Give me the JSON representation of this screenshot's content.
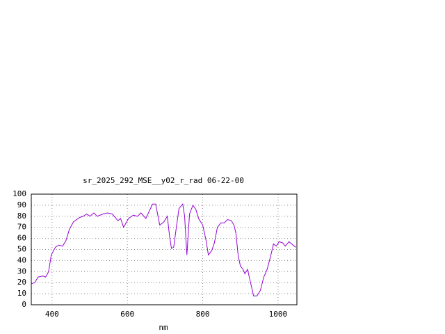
{
  "chart_data": {
    "type": "line",
    "title": "sr_2025_292_MSE__y02_r_rad 06-22-00",
    "x_label": "nm",
    "xlim": [
      345,
      1050
    ],
    "xticks": [
      400,
      600,
      800,
      1000
    ],
    "ylim": [
      0,
      100
    ],
    "yticks": [
      0,
      10,
      20,
      30,
      40,
      50,
      60,
      70,
      80,
      90,
      100
    ],
    "grid": true,
    "series": [
      {
        "color": "#9400d3",
        "x": [
          345,
          354,
          363,
          376,
          383,
          391,
          398,
          409,
          418,
          428,
          437,
          446,
          457,
          474,
          483,
          492,
          501,
          511,
          520,
          535,
          547,
          560,
          575,
          582,
          590,
          603,
          616,
          627,
          636,
          649,
          660,
          667,
          675,
          686,
          697,
          706,
          712,
          717,
          723,
          730,
          737,
          747,
          752,
          758,
          765,
          774,
          782,
          789,
          800,
          809,
          815,
          824,
          831,
          839,
          848,
          857,
          866,
          876,
          883,
          888,
          894,
          900,
          907,
          912,
          919,
          927,
          935,
          944,
          953,
          962,
          971,
          981,
          988,
          995,
          1003,
          1012,
          1019,
          1029,
          1036,
          1047
        ],
        "values": [
          19,
          20,
          25,
          26,
          25,
          30,
          45,
          52,
          54,
          53,
          58,
          68,
          75,
          79,
          80,
          82,
          80,
          83,
          80,
          82,
          83,
          82,
          76,
          78,
          70,
          78,
          81,
          80,
          83,
          78,
          86,
          91,
          91,
          72,
          75,
          80,
          62,
          51,
          52,
          70,
          87,
          91,
          80,
          45,
          82,
          90,
          86,
          78,
          72,
          58,
          45,
          49,
          56,
          70,
          74,
          74,
          77,
          76,
          72,
          65,
          45,
          35,
          32,
          28,
          32,
          20,
          8,
          8,
          13,
          25,
          32,
          45,
          55,
          53,
          57,
          56,
          53,
          57,
          55,
          52
        ]
      }
    ]
  }
}
